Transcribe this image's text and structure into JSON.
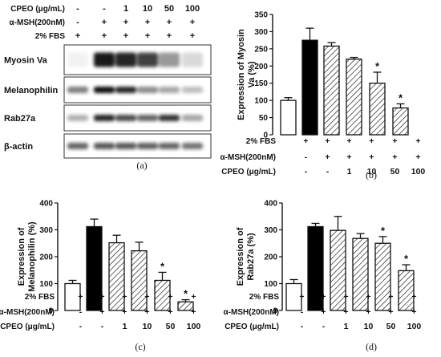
{
  "panel_a": {
    "caption": "(a)",
    "header_rows": [
      {
        "label": "CPEO (μg/mL)",
        "values": [
          "-",
          "-",
          "1",
          "10",
          "50",
          "100"
        ]
      },
      {
        "label": "α-MSH(200nM)",
        "values": [
          "-",
          "+",
          "+",
          "+",
          "+",
          "+"
        ]
      },
      {
        "label": "2% FBS",
        "values": [
          "+",
          "+",
          "+",
          "+",
          "+",
          "+"
        ]
      }
    ],
    "blots": [
      {
        "label": "Myosin Va",
        "intensity": [
          0.05,
          0.9,
          0.85,
          0.75,
          0.4,
          0.15
        ]
      },
      {
        "label": "Melanophilin",
        "intensity": [
          0.5,
          0.95,
          0.85,
          0.45,
          0.35,
          0.25
        ]
      },
      {
        "label": "Rab27a",
        "intensity": [
          0.3,
          0.85,
          0.7,
          0.6,
          0.8,
          0.35
        ]
      },
      {
        "label": "β-actin",
        "intensity": [
          0.6,
          0.65,
          0.65,
          0.62,
          0.6,
          0.55
        ]
      }
    ]
  },
  "chart_data": [
    {
      "type": "bar",
      "caption": "(b)",
      "ylabel": "Expression of Myosin Va (%)",
      "ylim": [
        0,
        350
      ],
      "yticks": [
        "0",
        "50",
        "100",
        "150",
        "200",
        "250",
        "300",
        "350"
      ],
      "values": [
        100,
        275,
        258,
        220,
        150,
        78
      ],
      "errors": [
        8,
        35,
        10,
        5,
        32,
        12
      ],
      "significant": [
        false,
        false,
        false,
        false,
        true,
        true
      ],
      "fills": [
        "white",
        "black",
        "hatch",
        "hatch",
        "hatch",
        "hatch"
      ],
      "sig_mark": "*"
    },
    {
      "type": "bar",
      "caption": "(c)",
      "ylabel": "Expression of Melanophilin (%)",
      "ylim": [
        0,
        400
      ],
      "yticks": [
        "0",
        "100",
        "200",
        "300",
        "400"
      ],
      "values": [
        100,
        312,
        252,
        222,
        112,
        32
      ],
      "errors": [
        12,
        28,
        28,
        32,
        30,
        8
      ],
      "significant": [
        false,
        false,
        false,
        false,
        true,
        true
      ],
      "fills": [
        "white",
        "black",
        "hatch",
        "hatch",
        "hatch",
        "hatch"
      ],
      "sig_mark": "*"
    },
    {
      "type": "bar",
      "caption": "(d)",
      "ylabel": "Expression of Rab27a (%)",
      "ylim": [
        0,
        400
      ],
      "yticks": [
        "0",
        "100",
        "200",
        "300",
        "400"
      ],
      "values": [
        100,
        312,
        298,
        268,
        250,
        148
      ],
      "errors": [
        15,
        12,
        52,
        18,
        25,
        22
      ],
      "significant": [
        false,
        false,
        false,
        false,
        true,
        true
      ],
      "fills": [
        "white",
        "black",
        "hatch",
        "hatch",
        "hatch",
        "hatch"
      ],
      "sig_mark": "*"
    }
  ],
  "table_rows": [
    {
      "label": "2% FBS",
      "values": [
        "+",
        "+",
        "+",
        "+",
        "+",
        "+"
      ]
    },
    {
      "label": "α-MSH(200nM)",
      "values": [
        "-",
        "+",
        "+",
        "+",
        "+",
        "+"
      ]
    },
    {
      "label": "CPEO (μg/mL)",
      "values": [
        "-",
        "-",
        "1",
        "10",
        "50",
        "100"
      ]
    }
  ]
}
